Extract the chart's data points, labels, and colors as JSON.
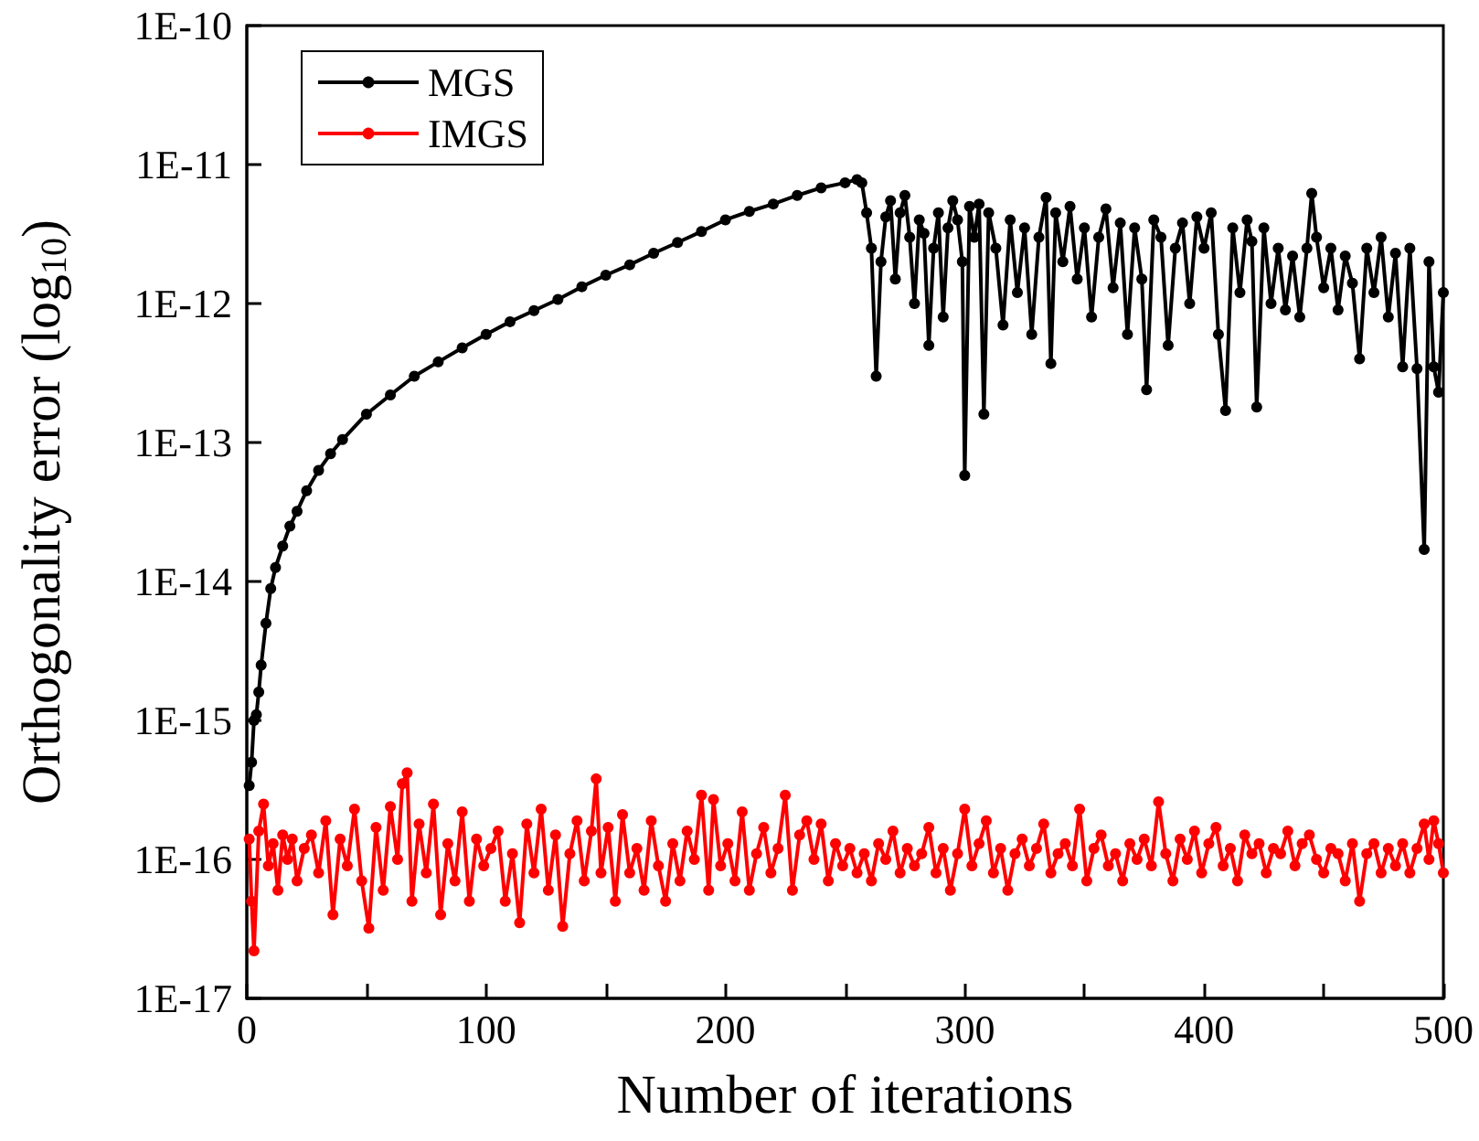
{
  "chart_data": {
    "type": "line",
    "xlabel": "Number of iterations",
    "ylabel": "Orthogonality error (log$_{10}$)",
    "log": true,
    "legend": "top left",
    "marker": "circle",
    "xlim": [
      0,
      500
    ],
    "xticks": [
      0,
      {
        "value": 50,
        "label": null
      },
      100,
      {
        "value": 150,
        "label": null
      },
      200,
      {
        "value": 250,
        "label": null
      },
      300,
      {
        "value": 350,
        "label": null
      },
      400,
      {
        "value": 450,
        "label": null
      },
      500
    ],
    "ylim": [
      1e-17,
      1e-10
    ],
    "yticks": [
      {
        "value": 1e-17,
        "label": "1E-17"
      },
      {
        "value": 1e-16,
        "label": "1E-16"
      },
      {
        "value": 1e-15,
        "label": "1E-15"
      },
      {
        "value": 1e-14,
        "label": "1E-14"
      },
      {
        "value": 1e-13,
        "label": "1E-13"
      },
      {
        "value": 1e-12,
        "label": "1E-12"
      },
      {
        "value": 1e-11,
        "label": "1E-11"
      },
      {
        "value": 1e-10,
        "label": "1E-10"
      }
    ],
    "series": [
      {
        "name": "MGS",
        "color": "#000000",
        "x": [
          1,
          2,
          3,
          4,
          5,
          6,
          8,
          10,
          12,
          15,
          18,
          21,
          25,
          30,
          35,
          40,
          50,
          60,
          70,
          80,
          90,
          100,
          110,
          120,
          130,
          140,
          150,
          160,
          170,
          180,
          190,
          200,
          210,
          220,
          230,
          240,
          250,
          255,
          257,
          259,
          261,
          263,
          265,
          267,
          269,
          271,
          273,
          275,
          277,
          279,
          281,
          283,
          285,
          287,
          289,
          291,
          293,
          295,
          297,
          299,
          300,
          302,
          304,
          306,
          308,
          310,
          313,
          316,
          319,
          322,
          325,
          328,
          331,
          334,
          336,
          338,
          341,
          344,
          347,
          350,
          353,
          356,
          359,
          362,
          365,
          368,
          371,
          374,
          376,
          379,
          382,
          385,
          388,
          391,
          394,
          397,
          400,
          403,
          406,
          409,
          412,
          415,
          418,
          420,
          422,
          425,
          428,
          431,
          434,
          437,
          440,
          443,
          445,
          447,
          450,
          453,
          456,
          459,
          462,
          465,
          468,
          471,
          474,
          477,
          480,
          483,
          486,
          489,
          492,
          494,
          496,
          498,
          500
        ],
        "values": [
          3.4e-16,
          5e-16,
          1e-15,
          1.1e-15,
          1.6e-15,
          2.5e-15,
          5e-15,
          8.9e-15,
          1.26e-14,
          1.8e-14,
          2.5e-14,
          3.2e-14,
          4.5e-14,
          6.3e-14,
          8.3e-14,
          1.05e-13,
          1.6e-13,
          2.2e-13,
          3e-13,
          3.8e-13,
          4.8e-13,
          6e-13,
          7.4e-13,
          8.9e-13,
          1.07e-12,
          1.32e-12,
          1.6e-12,
          1.9e-12,
          2.3e-12,
          2.75e-12,
          3.3e-12,
          4e-12,
          4.6e-12,
          5.2e-12,
          6e-12,
          6.8e-12,
          7.4e-12,
          7.8e-12,
          7.4e-12,
          4.5e-12,
          2.5e-12,
          3e-13,
          2e-12,
          4.2e-12,
          5.5e-12,
          1.5e-12,
          4.5e-12,
          6e-12,
          3e-12,
          1e-12,
          4e-12,
          3.2e-12,
          5e-13,
          2.5e-12,
          4.5e-12,
          8e-13,
          3.5e-12,
          5.5e-12,
          4e-12,
          2e-12,
          5.8e-14,
          5e-12,
          3e-12,
          5.2e-12,
          1.6e-13,
          4.5e-12,
          2.5e-12,
          7e-13,
          4e-12,
          1.2e-12,
          3.5e-12,
          6e-13,
          3e-12,
          5.8e-12,
          3.7e-13,
          4.5e-12,
          2e-12,
          5e-12,
          1.5e-12,
          3.5e-12,
          8e-13,
          3e-12,
          4.8e-12,
          1.3e-12,
          3.8e-12,
          6e-13,
          3.5e-12,
          1.5e-12,
          2.4e-13,
          4e-12,
          3e-12,
          5e-13,
          2.5e-12,
          3.8e-12,
          1e-12,
          4.2e-12,
          2.5e-12,
          4.5e-12,
          6e-13,
          1.7e-13,
          3.5e-12,
          1.2e-12,
          4e-12,
          2.8e-12,
          1.8e-13,
          3.5e-12,
          1e-12,
          2.5e-12,
          9e-13,
          2.2e-12,
          8e-13,
          2.5e-12,
          6.2e-12,
          3e-12,
          1.3e-12,
          2.5e-12,
          9e-13,
          2.2e-12,
          1.4e-12,
          4e-13,
          2.5e-12,
          1.2e-12,
          3e-12,
          8e-13,
          2.3e-12,
          3.5e-13,
          2.5e-12,
          3.4e-13,
          1.7e-14,
          2e-12,
          3.5e-13,
          2.3e-13,
          1.2e-12
        ]
      },
      {
        "name": "IMGS",
        "color": "#ff0000",
        "x": [
          1,
          2,
          3,
          5,
          7,
          9,
          11,
          13,
          15,
          17,
          19,
          21,
          24,
          27,
          30,
          33,
          36,
          39,
          42,
          45,
          48,
          51,
          54,
          57,
          60,
          63,
          65,
          67,
          69,
          72,
          75,
          78,
          81,
          84,
          87,
          90,
          93,
          96,
          99,
          102,
          105,
          108,
          111,
          114,
          117,
          120,
          123,
          126,
          129,
          132,
          135,
          138,
          141,
          144,
          146,
          148,
          151,
          154,
          157,
          160,
          163,
          166,
          169,
          172,
          175,
          178,
          181,
          184,
          187,
          190,
          193,
          195,
          198,
          201,
          204,
          207,
          210,
          213,
          216,
          219,
          222,
          225,
          228,
          231,
          234,
          237,
          240,
          243,
          246,
          249,
          252,
          255,
          258,
          261,
          264,
          267,
          270,
          273,
          276,
          279,
          282,
          285,
          288,
          291,
          294,
          297,
          300,
          303,
          306,
          309,
          312,
          315,
          318,
          321,
          324,
          327,
          330,
          333,
          336,
          339,
          342,
          345,
          348,
          351,
          354,
          357,
          360,
          363,
          366,
          369,
          372,
          375,
          378,
          381,
          384,
          387,
          390,
          393,
          396,
          399,
          402,
          405,
          408,
          411,
          414,
          417,
          420,
          423,
          426,
          429,
          432,
          435,
          438,
          441,
          444,
          447,
          450,
          453,
          456,
          459,
          462,
          465,
          468,
          471,
          474,
          477,
          480,
          483,
          486,
          489,
          492,
          494,
          496,
          498,
          500
        ],
        "values": [
          1.4e-16,
          5e-17,
          2.2e-17,
          1.6e-16,
          2.5e-16,
          9e-17,
          1.3e-16,
          6e-17,
          1.5e-16,
          1e-16,
          1.4e-16,
          7e-17,
          1.2e-16,
          1.5e-16,
          8e-17,
          1.9e-16,
          4e-17,
          1.4e-16,
          9e-17,
          2.3e-16,
          7e-17,
          3.2e-17,
          1.7e-16,
          6e-17,
          2.4e-16,
          1e-16,
          3.5e-16,
          4.2e-16,
          5e-17,
          1.8e-16,
          8e-17,
          2.5e-16,
          4e-17,
          1.3e-16,
          7e-17,
          2.2e-16,
          5e-17,
          1.4e-16,
          9e-17,
          1.2e-16,
          1.6e-16,
          5e-17,
          1.1e-16,
          3.5e-17,
          1.8e-16,
          8e-17,
          2.3e-16,
          6e-17,
          1.5e-16,
          3.3e-17,
          1.1e-16,
          1.9e-16,
          7e-17,
          1.6e-16,
          3.8e-16,
          8e-17,
          1.7e-16,
          5e-17,
          2.1e-16,
          8e-17,
          1.2e-16,
          6e-17,
          1.9e-16,
          9e-17,
          5e-17,
          1.3e-16,
          7e-17,
          1.6e-16,
          1e-16,
          2.9e-16,
          6e-17,
          2.7e-16,
          9e-17,
          1.3e-16,
          7e-17,
          2.2e-16,
          6e-17,
          1.1e-16,
          1.7e-16,
          8e-17,
          1.2e-16,
          2.9e-16,
          6e-17,
          1.5e-16,
          1.9e-16,
          1e-16,
          1.8e-16,
          7e-17,
          1.3e-16,
          9e-17,
          1.2e-16,
          8e-17,
          1.1e-16,
          7e-17,
          1.3e-16,
          1e-16,
          1.6e-16,
          8e-17,
          1.2e-16,
          9e-17,
          1.1e-16,
          1.7e-16,
          8e-17,
          1.2e-16,
          6e-17,
          1.1e-16,
          2.3e-16,
          9e-17,
          1.3e-16,
          1.9e-16,
          8e-17,
          1.2e-16,
          6e-17,
          1.1e-16,
          1.4e-16,
          9e-17,
          1.2e-16,
          1.8e-16,
          8e-17,
          1.1e-16,
          1.3e-16,
          9e-17,
          2.3e-16,
          7e-17,
          1.2e-16,
          1.5e-16,
          9e-17,
          1.1e-16,
          7e-17,
          1.3e-16,
          1e-16,
          1.4e-16,
          9e-17,
          2.6e-16,
          1.1e-16,
          7e-17,
          1.4e-16,
          1e-16,
          1.6e-16,
          8e-17,
          1.3e-16,
          1.7e-16,
          9e-17,
          1.2e-16,
          7e-17,
          1.5e-16,
          1.1e-16,
          1.3e-16,
          8e-17,
          1.2e-16,
          1.1e-16,
          1.6e-16,
          9e-17,
          1.3e-16,
          1.5e-16,
          1e-16,
          8e-17,
          1.2e-16,
          1.1e-16,
          7e-17,
          1.3e-16,
          5e-17,
          1.1e-16,
          1.3e-16,
          8e-17,
          1.2e-16,
          9e-17,
          1.3e-16,
          8e-17,
          1.2e-16,
          1.8e-16,
          1e-16,
          1.9e-16,
          1.3e-16,
          8e-17
        ]
      }
    ]
  }
}
